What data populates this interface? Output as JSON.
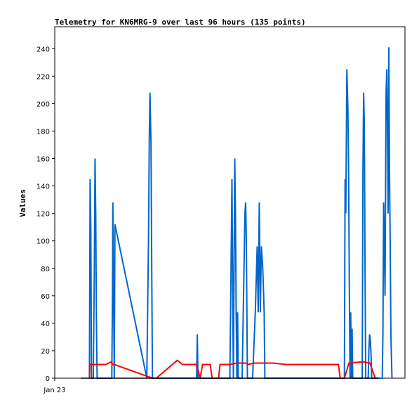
{
  "chart_data": {
    "type": "line",
    "title": "Telemetry for KN6MRG-9 over last 96 hours (135 points)",
    "ylabel": "Values",
    "xlabel": "",
    "x_tick_labels": [
      "Jan 23"
    ],
    "ylim": [
      0,
      256
    ],
    "yticks": [
      0,
      20,
      40,
      60,
      80,
      100,
      120,
      140,
      160,
      180,
      200,
      220,
      240
    ],
    "xlim": [
      0,
      100
    ],
    "grid": false,
    "legend": "none",
    "series": [
      {
        "color": "#0066cc",
        "points": [
          [
            9.9,
            0
          ],
          [
            10.0,
            72
          ],
          [
            10.1,
            145
          ],
          [
            10.3,
            108
          ],
          [
            10.5,
            0
          ],
          [
            11.0,
            0
          ],
          [
            11.3,
            80
          ],
          [
            11.5,
            160
          ],
          [
            11.7,
            120
          ],
          [
            11.9,
            40
          ],
          [
            12.1,
            0
          ],
          [
            16.3,
            0
          ],
          [
            16.5,
            64
          ],
          [
            16.6,
            128
          ],
          [
            16.8,
            64
          ],
          [
            17.0,
            0
          ],
          [
            17.2,
            112
          ],
          [
            26.3,
            0
          ],
          [
            26.8,
            105
          ],
          [
            27.0,
            175
          ],
          [
            27.2,
            208
          ],
          [
            27.5,
            170
          ],
          [
            27.7,
            80
          ],
          [
            27.9,
            0
          ],
          [
            40.5,
            0
          ],
          [
            40.7,
            32
          ],
          [
            40.9,
            0
          ],
          [
            50.0,
            0
          ],
          [
            50.3,
            70
          ],
          [
            50.6,
            145
          ],
          [
            50.8,
            70
          ],
          [
            51.0,
            0
          ],
          [
            51.2,
            80
          ],
          [
            51.4,
            160
          ],
          [
            51.6,
            120
          ],
          [
            51.8,
            48
          ],
          [
            52.0,
            0
          ],
          [
            52.2,
            48
          ],
          [
            52.4,
            0
          ],
          [
            53.5,
            0
          ],
          [
            53.9,
            60
          ],
          [
            54.3,
            120
          ],
          [
            54.5,
            128
          ],
          [
            54.7,
            100
          ],
          [
            55.0,
            0
          ],
          [
            56.5,
            0
          ],
          [
            57.3,
            50
          ],
          [
            57.8,
            96
          ],
          [
            58.1,
            48
          ],
          [
            58.4,
            128
          ],
          [
            58.7,
            48
          ],
          [
            59.0,
            96
          ],
          [
            59.4,
            80
          ],
          [
            59.8,
            48
          ],
          [
            60.0,
            0
          ],
          [
            82.7,
            0
          ],
          [
            82.9,
            145
          ],
          [
            83.1,
            120
          ],
          [
            83.4,
            225
          ],
          [
            83.7,
            196
          ],
          [
            83.9,
            150
          ],
          [
            84.1,
            70
          ],
          [
            84.3,
            0
          ],
          [
            84.5,
            48
          ],
          [
            84.7,
            0
          ],
          [
            84.9,
            36
          ],
          [
            85.1,
            0
          ],
          [
            87.8,
            0
          ],
          [
            88.0,
            150
          ],
          [
            88.2,
            208
          ],
          [
            88.4,
            185
          ],
          [
            88.6,
            80
          ],
          [
            88.8,
            0
          ],
          [
            89.5,
            0
          ],
          [
            89.7,
            20
          ],
          [
            89.9,
            32
          ],
          [
            90.1,
            28
          ],
          [
            90.3,
            18
          ],
          [
            90.5,
            0
          ],
          [
            93.5,
            0
          ],
          [
            93.7,
            32
          ],
          [
            93.9,
            128
          ],
          [
            94.1,
            100
          ],
          [
            94.3,
            60
          ],
          [
            94.6,
            208
          ],
          [
            94.8,
            225
          ],
          [
            95.0,
            186
          ],
          [
            95.2,
            120
          ],
          [
            95.4,
            241
          ],
          [
            95.6,
            150
          ],
          [
            95.8,
            95
          ],
          [
            96.0,
            30
          ],
          [
            96.3,
            0
          ]
        ]
      },
      {
        "color": "#ff0000",
        "points": [
          [
            9.9,
            0
          ],
          [
            10.0,
            10
          ],
          [
            11.5,
            10
          ],
          [
            14.5,
            10
          ],
          [
            16.2,
            12
          ],
          [
            16.5,
            10
          ],
          [
            17.0,
            10
          ],
          [
            27.9,
            0
          ],
          [
            29.0,
            0
          ],
          [
            35.0,
            13
          ],
          [
            36.5,
            10
          ],
          [
            40.5,
            10
          ],
          [
            41.5,
            0
          ],
          [
            42.2,
            10
          ],
          [
            44.4,
            10
          ],
          [
            44.9,
            0
          ],
          [
            46.8,
            0
          ],
          [
            47.2,
            10
          ],
          [
            50.0,
            10
          ],
          [
            52.0,
            11
          ],
          [
            54.5,
            11
          ],
          [
            55.2,
            10
          ],
          [
            57.0,
            11
          ],
          [
            62.5,
            11
          ],
          [
            66.0,
            10
          ],
          [
            76.0,
            10
          ],
          [
            81.0,
            10
          ],
          [
            81.5,
            0
          ],
          [
            82.7,
            0
          ],
          [
            84.0,
            11
          ],
          [
            88.0,
            12
          ],
          [
            90.0,
            11
          ],
          [
            91.5,
            0
          ]
        ]
      },
      {
        "color": "#000000",
        "points": [
          [
            7.5,
            0
          ],
          [
            92.5,
            0
          ]
        ]
      }
    ]
  }
}
